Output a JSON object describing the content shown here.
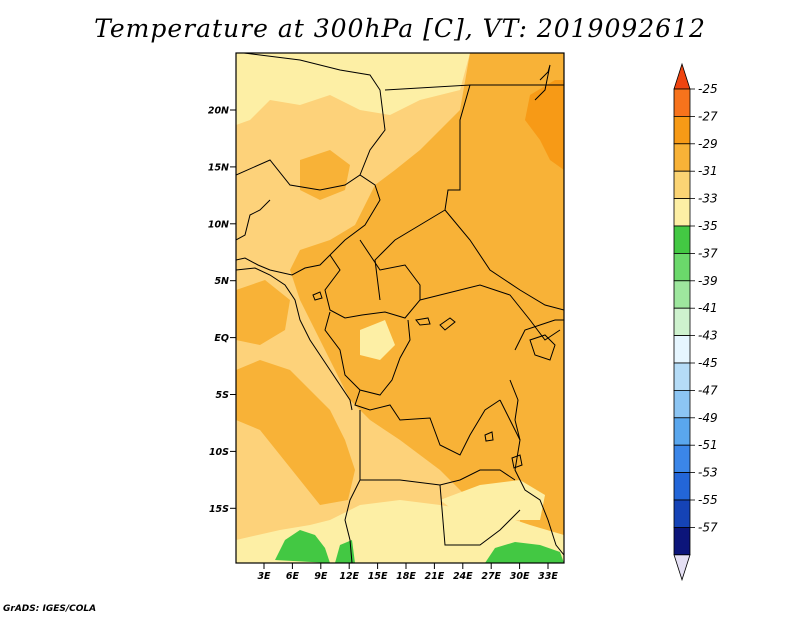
{
  "title": "Temperature at 300hPa [C], VT: 2019092612",
  "credit": "GrADS: IGES/COLA",
  "lat_labels": [
    "20N",
    "15N",
    "10N",
    "5N",
    "EQ",
    "5S",
    "10S",
    "15S"
  ],
  "lon_labels": [
    "3E",
    "6E",
    "9E",
    "12E",
    "15E",
    "18E",
    "21E",
    "24E",
    "27E",
    "30E",
    "33E"
  ],
  "colorbar": {
    "labels": [
      "-25",
      "-27",
      "-29",
      "-31",
      "-33",
      "-35",
      "-37",
      "-39",
      "-41",
      "-43",
      "-45",
      "-47",
      "-49",
      "-51",
      "-53",
      "-55",
      "-57"
    ],
    "colors": [
      "#f7731c",
      "#f79a16",
      "#f8b237",
      "#fbd474",
      "#fdefa5",
      "#43c843",
      "#6bd96b",
      "#9ee79e",
      "#cef2ce",
      "#e6f6ff",
      "#b5dcf7",
      "#8cc5f3",
      "#5aa7ee",
      "#3b86e8",
      "#2366d8",
      "#1543b6",
      "#0c157a"
    ],
    "top_arrow_color": "#ef4410",
    "bottom_arrow_color": "#e5e0f4"
  },
  "field_colors": {
    "base": "#fdd27a",
    "warm": "#f8b237",
    "warmer": "#f79a16",
    "cool": "#fdefa5",
    "cold": "#43c843"
  }
}
